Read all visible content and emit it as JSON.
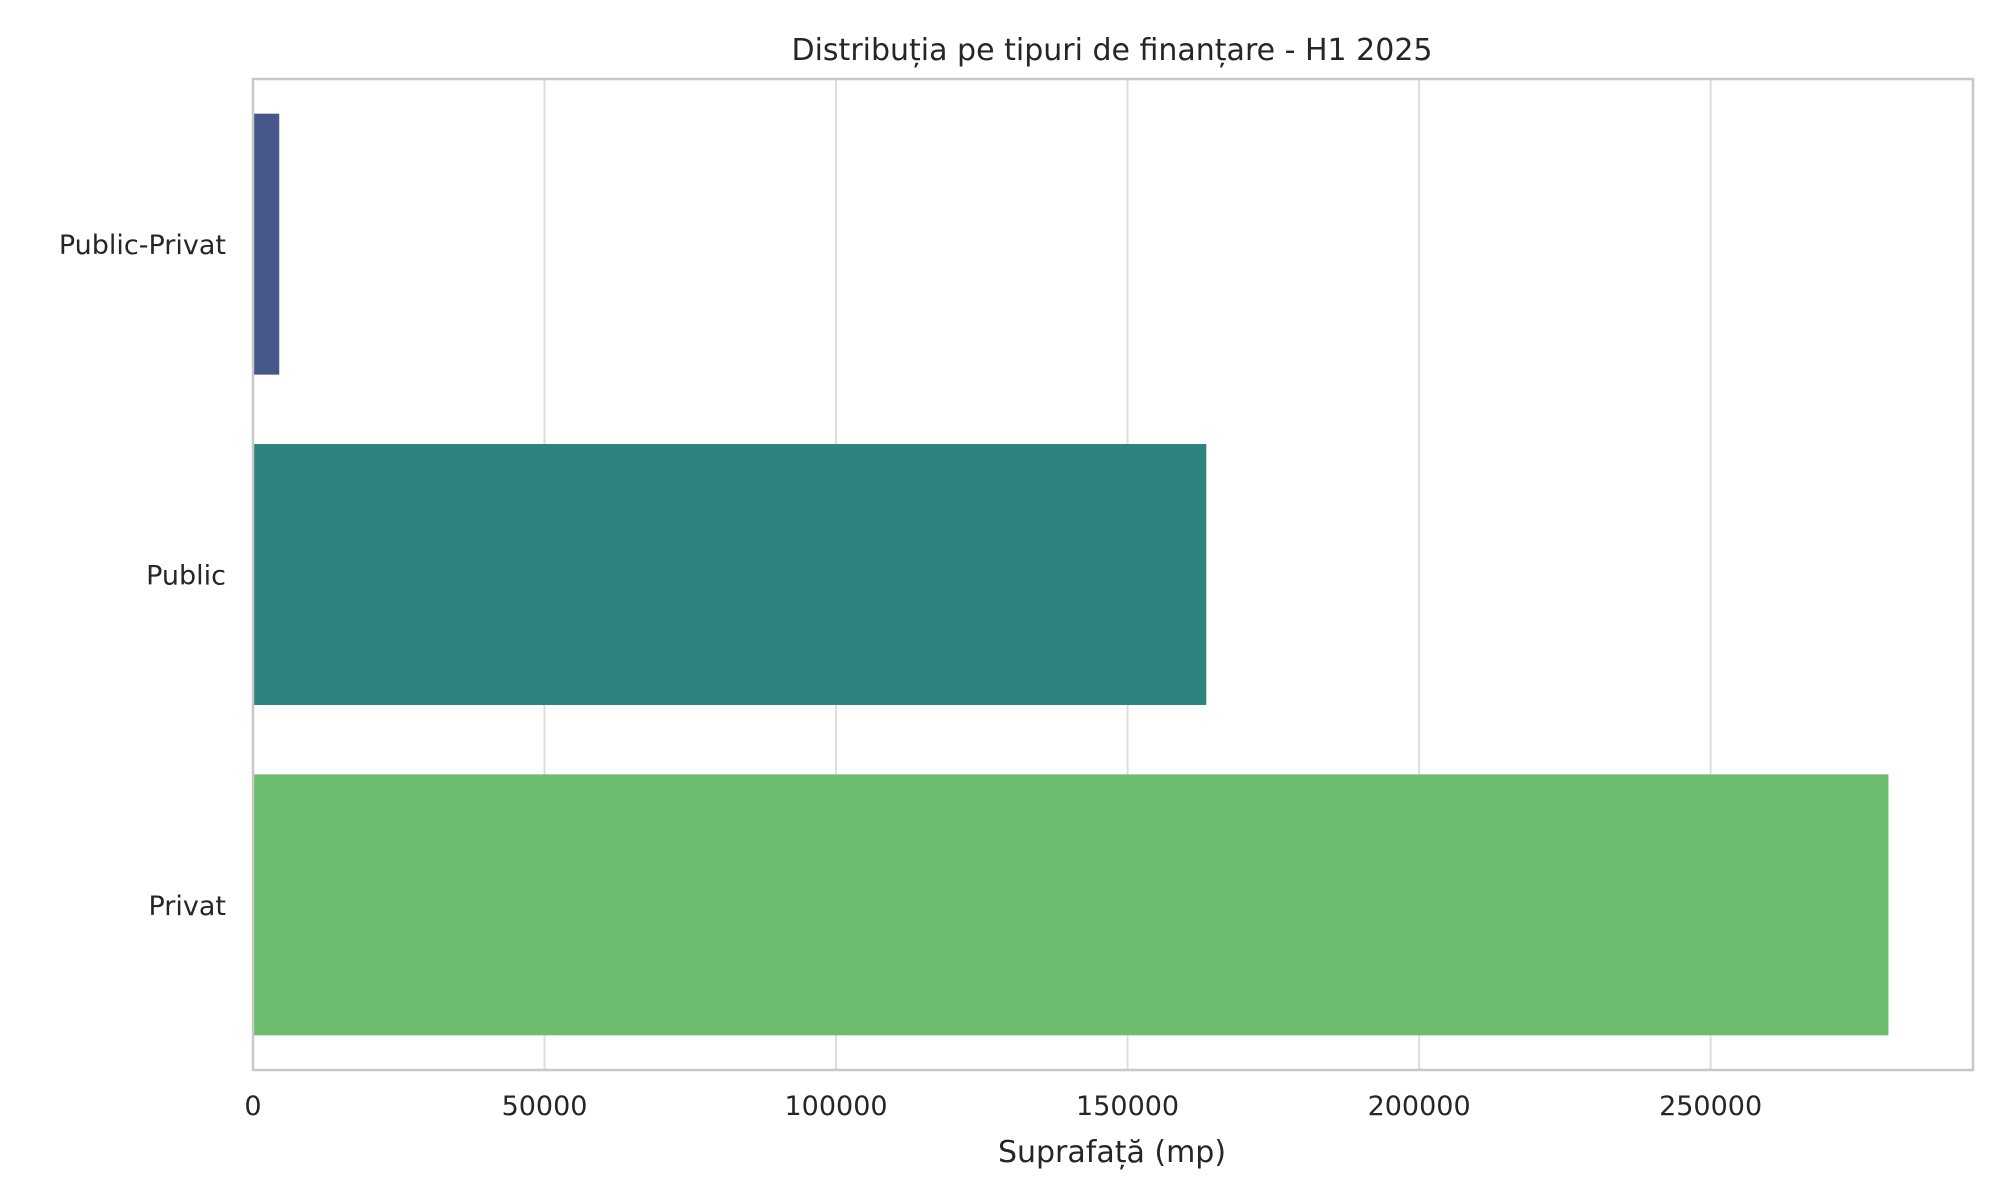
{
  "chart_data": {
    "type": "bar",
    "orientation": "horizontal",
    "title": "Distribuția pe tipuri de finanțare - H1 2025",
    "xlabel": "Suprafață (mp)",
    "ylabel": "",
    "xlim": [
      0,
      295000
    ],
    "xticks": [
      0,
      50000,
      100000,
      150000,
      200000,
      250000
    ],
    "grid": true,
    "categories": [
      "Public-Privat",
      "Public",
      "Privat"
    ],
    "values": [
      4500,
      163500,
      280500
    ],
    "colors": [
      "#46578a",
      "#2e837e",
      "#6cbd6d"
    ]
  }
}
